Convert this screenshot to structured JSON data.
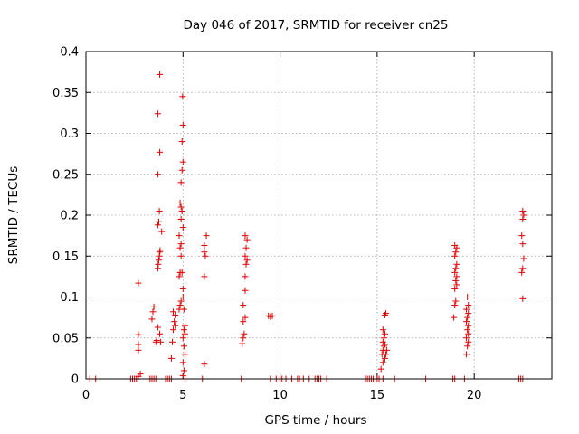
{
  "chart_data": {
    "type": "scatter",
    "title": "Day 046 of 2017, SRMTID for receiver cn25",
    "xlabel": "GPS time / hours",
    "ylabel": "SRMTID / TECUs",
    "xlim": [
      0,
      24
    ],
    "ylim": [
      0,
      0.4
    ],
    "xticks": [
      0,
      5,
      10,
      15,
      20
    ],
    "yticks": [
      0,
      0.05,
      0.1,
      0.15,
      0.2,
      0.25,
      0.3,
      0.35,
      0.4
    ],
    "xtick_labels": [
      "0",
      "5",
      "10",
      "15",
      "20"
    ],
    "ytick_labels": [
      "0",
      "0.05",
      "0.1",
      "0.15",
      "0.2",
      "0.25",
      "0.3",
      "0.35",
      "0.4"
    ],
    "grid": true,
    "marker": "+",
    "color": "#e00000",
    "series": [
      {
        "name": "SRMTID",
        "points": [
          [
            0.2,
            0
          ],
          [
            0.5,
            0
          ],
          [
            2.3,
            0
          ],
          [
            2.4,
            0
          ],
          [
            2.5,
            0
          ],
          [
            2.6,
            0
          ],
          [
            2.7,
            0.003
          ],
          [
            2.8,
            0.006
          ],
          [
            2.7,
            0.035
          ],
          [
            2.7,
            0.042
          ],
          [
            2.7,
            0.054
          ],
          [
            2.7,
            0.117
          ],
          [
            3.3,
            0
          ],
          [
            3.4,
            0
          ],
          [
            3.5,
            0
          ],
          [
            3.6,
            0
          ],
          [
            3.4,
            0.073
          ],
          [
            3.45,
            0.082
          ],
          [
            3.5,
            0.088
          ],
          [
            3.6,
            0.045
          ],
          [
            3.65,
            0.047
          ],
          [
            3.7,
            0.063
          ],
          [
            3.7,
            0.135
          ],
          [
            3.72,
            0.14
          ],
          [
            3.75,
            0.145
          ],
          [
            3.78,
            0.15
          ],
          [
            3.8,
            0.155
          ],
          [
            3.82,
            0.157
          ],
          [
            3.7,
            0.188
          ],
          [
            3.75,
            0.192
          ],
          [
            3.78,
            0.205
          ],
          [
            3.7,
            0.25
          ],
          [
            3.8,
            0.277
          ],
          [
            3.7,
            0.324
          ],
          [
            3.8,
            0.372
          ],
          [
            3.8,
            0.055
          ],
          [
            3.85,
            0.045
          ],
          [
            3.9,
            0.18
          ],
          [
            4.1,
            0
          ],
          [
            4.2,
            0
          ],
          [
            4.3,
            0
          ],
          [
            4.4,
            0
          ],
          [
            4.4,
            0.025
          ],
          [
            4.45,
            0.045
          ],
          [
            4.5,
            0.06
          ],
          [
            4.55,
            0.07
          ],
          [
            4.6,
            0.078
          ],
          [
            4.5,
            0.082
          ],
          [
            4.6,
            0.065
          ],
          [
            4.8,
            0.085
          ],
          [
            4.85,
            0.09
          ],
          [
            4.9,
            0.095
          ],
          [
            4.8,
            0.125
          ],
          [
            4.85,
            0.13
          ],
          [
            4.9,
            0.15
          ],
          [
            4.85,
            0.16
          ],
          [
            4.9,
            0.165
          ],
          [
            4.8,
            0.175
          ],
          [
            4.9,
            0.195
          ],
          [
            4.85,
            0.215
          ],
          [
            4.9,
            0.21
          ],
          [
            4.95,
            0.205
          ],
          [
            5.0,
            0.185
          ],
          [
            4.9,
            0.24
          ],
          [
            4.95,
            0.255
          ],
          [
            5.0,
            0.265
          ],
          [
            4.95,
            0.29
          ],
          [
            5.0,
            0.31
          ],
          [
            4.98,
            0.345
          ],
          [
            5.0,
            0.1
          ],
          [
            5.05,
            0.085
          ],
          [
            5.1,
            0.065
          ],
          [
            5.05,
            0.06
          ],
          [
            5.1,
            0.055
          ],
          [
            5.0,
            0.05
          ],
          [
            5.05,
            0.04
          ],
          [
            5.1,
            0.03
          ],
          [
            5.0,
            0.02
          ],
          [
            5.05,
            0.01
          ],
          [
            5.0,
            0.004
          ],
          [
            5.0,
            0.11
          ],
          [
            4.95,
            0.13
          ],
          [
            5.1,
            0
          ],
          [
            6.0,
            0
          ],
          [
            6.1,
            0.018
          ],
          [
            6.1,
            0.125
          ],
          [
            6.1,
            0.155
          ],
          [
            6.15,
            0.15
          ],
          [
            6.1,
            0.163
          ],
          [
            6.2,
            0.175
          ],
          [
            8.0,
            0
          ],
          [
            8.05,
            0.043
          ],
          [
            8.1,
            0.05
          ],
          [
            8.15,
            0.055
          ],
          [
            8.1,
            0.07
          ],
          [
            8.2,
            0.075
          ],
          [
            8.1,
            0.09
          ],
          [
            8.2,
            0.108
          ],
          [
            8.2,
            0.125
          ],
          [
            8.25,
            0.14
          ],
          [
            8.3,
            0.145
          ],
          [
            8.2,
            0.15
          ],
          [
            8.25,
            0.16
          ],
          [
            8.3,
            0.17
          ],
          [
            8.2,
            0.175
          ],
          [
            9.4,
            0.077
          ],
          [
            9.5,
            0.076
          ],
          [
            9.6,
            0.077
          ],
          [
            9.5,
            0
          ],
          [
            9.8,
            0
          ],
          [
            10.0,
            0
          ],
          [
            10.1,
            0
          ],
          [
            10.3,
            0
          ],
          [
            10.6,
            0
          ],
          [
            10.9,
            0
          ],
          [
            11.0,
            0
          ],
          [
            11.2,
            0
          ],
          [
            11.5,
            0
          ],
          [
            11.8,
            0
          ],
          [
            11.9,
            0
          ],
          [
            12.0,
            0
          ],
          [
            12.1,
            0
          ],
          [
            12.4,
            0
          ],
          [
            14.4,
            0
          ],
          [
            14.5,
            0
          ],
          [
            14.6,
            0
          ],
          [
            14.7,
            0
          ],
          [
            14.8,
            0
          ],
          [
            15.0,
            0
          ],
          [
            15.1,
            0
          ],
          [
            15.2,
            0.012
          ],
          [
            15.3,
            0.02
          ],
          [
            15.25,
            0.03
          ],
          [
            15.3,
            0.035
          ],
          [
            15.35,
            0.04
          ],
          [
            15.4,
            0.042
          ],
          [
            15.3,
            0.045
          ],
          [
            15.35,
            0.05
          ],
          [
            15.4,
            0.055
          ],
          [
            15.3,
            0.06
          ],
          [
            15.4,
            0.025
          ],
          [
            15.45,
            0.03
          ],
          [
            15.5,
            0.035
          ],
          [
            15.4,
            0.078
          ],
          [
            15.45,
            0.08
          ],
          [
            15.3,
            0
          ],
          [
            15.9,
            0
          ],
          [
            17.5,
            0
          ],
          [
            18.9,
            0
          ],
          [
            19.0,
            0
          ],
          [
            19.5,
            0
          ],
          [
            18.95,
            0.075
          ],
          [
            19.0,
            0.09
          ],
          [
            19.05,
            0.095
          ],
          [
            19.0,
            0.11
          ],
          [
            19.1,
            0.115
          ],
          [
            19.05,
            0.12
          ],
          [
            19.1,
            0.125
          ],
          [
            19.0,
            0.13
          ],
          [
            19.05,
            0.135
          ],
          [
            19.1,
            0.14
          ],
          [
            19.0,
            0.15
          ],
          [
            19.05,
            0.155
          ],
          [
            19.1,
            0.16
          ],
          [
            19.0,
            0.163
          ],
          [
            19.6,
            0.03
          ],
          [
            19.65,
            0.04
          ],
          [
            19.7,
            0.045
          ],
          [
            19.6,
            0.05
          ],
          [
            19.7,
            0.055
          ],
          [
            19.65,
            0.06
          ],
          [
            19.7,
            0.065
          ],
          [
            19.6,
            0.07
          ],
          [
            19.65,
            0.075
          ],
          [
            19.7,
            0.08
          ],
          [
            19.6,
            0.085
          ],
          [
            19.7,
            0.09
          ],
          [
            19.65,
            0.1
          ],
          [
            22.3,
            0
          ],
          [
            22.4,
            0
          ],
          [
            22.5,
            0
          ],
          [
            22.5,
            0.098
          ],
          [
            22.45,
            0.13
          ],
          [
            22.5,
            0.135
          ],
          [
            22.55,
            0.147
          ],
          [
            22.5,
            0.165
          ],
          [
            22.45,
            0.175
          ],
          [
            22.5,
            0.195
          ],
          [
            22.55,
            0.2
          ],
          [
            22.5,
            0.205
          ]
        ]
      }
    ]
  }
}
